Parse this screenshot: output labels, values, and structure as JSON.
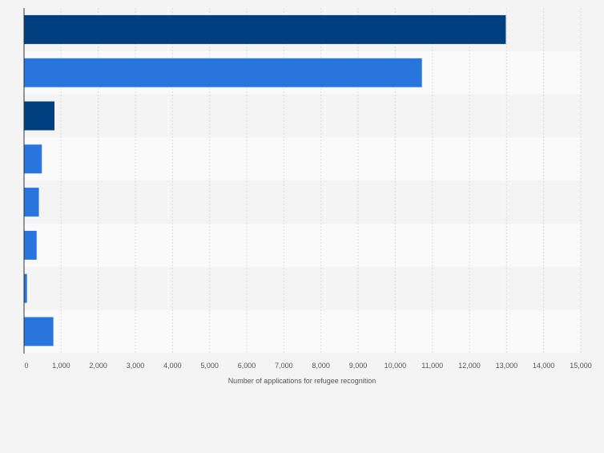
{
  "chart_data": {
    "type": "bar",
    "orientation": "horizontal",
    "categories": [
      "",
      "",
      "",
      "",
      "",
      "",
      "",
      ""
    ],
    "values": [
      12980,
      10720,
      820,
      480,
      400,
      340,
      80,
      790
    ],
    "bar_colors": [
      "#003f7f",
      "#2876dd",
      "#003f7f",
      "#2876dd",
      "#2876dd",
      "#2876dd",
      "#2876dd",
      "#2876dd"
    ],
    "xlabel": "Number of applications for refugee recognition",
    "xlim": [
      0,
      15000
    ],
    "xticks": [
      0,
      1000,
      2000,
      3000,
      4000,
      5000,
      6000,
      7000,
      8000,
      9000,
      10000,
      11000,
      12000,
      13000,
      14000,
      15000
    ],
    "xtick_labels": [
      "0",
      "1,000",
      "2,000",
      "3,000",
      "4,000",
      "5,000",
      "6,000",
      "7,000",
      "8,000",
      "9,000",
      "10,000",
      "11,000",
      "12,000",
      "13,000",
      "14,000",
      "15,000"
    ],
    "grid": true
  },
  "colors": {
    "background": "#f4f4f4",
    "band_even": "#f4f4f4",
    "band_odd": "#fafafa",
    "gridline": "#dcdcdc",
    "axis": "#333333",
    "tick_text": "#555555"
  }
}
